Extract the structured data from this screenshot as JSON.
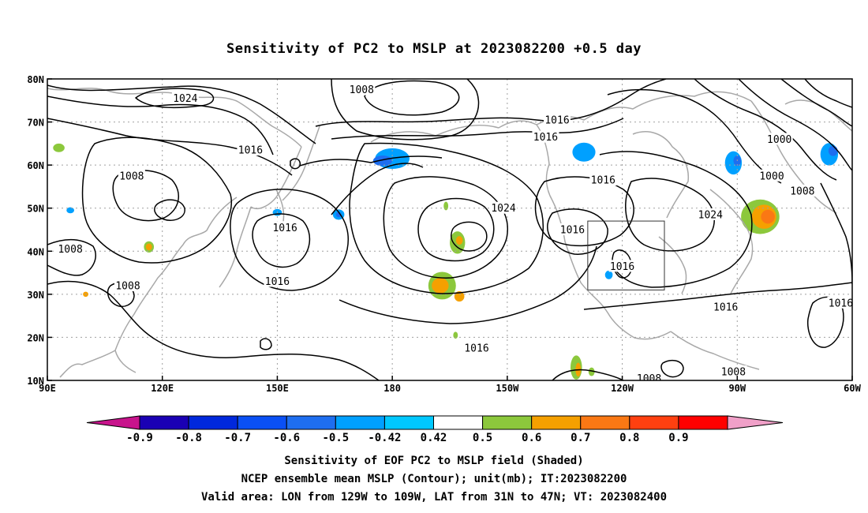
{
  "title": "Sensitivity of PC2 to MSLP at 2023082200 +0.5 day",
  "map": {
    "lon_ticks": [
      "90E",
      "120E",
      "150E",
      "180",
      "150W",
      "120W",
      "90W",
      "60W"
    ],
    "lat_ticks": [
      "80N",
      "70N",
      "60N",
      "50N",
      "40N",
      "30N",
      "20N",
      "10N"
    ],
    "lon_range": [
      90,
      300
    ],
    "lat_range": [
      10,
      80
    ],
    "grid": true,
    "valid_box": {
      "lon_w": -129,
      "lon_e": -109,
      "lat_s": 31,
      "lat_n": 47
    },
    "contour_labels": [
      {
        "text": "1024",
        "lon": 126,
        "lat": 75.5
      },
      {
        "text": "1008",
        "lon": 172,
        "lat": 77.5
      },
      {
        "text": "1016",
        "lon": 223,
        "lat": 70.5
      },
      {
        "text": "1016",
        "lon": 220,
        "lat": 66.5
      },
      {
        "text": "1016",
        "lon": 143,
        "lat": 63.5
      },
      {
        "text": "1008",
        "lon": 112,
        "lat": 57.5
      },
      {
        "text": "1000",
        "lon": 281,
        "lat": 66
      },
      {
        "text": "1000",
        "lon": 279,
        "lat": 57.5
      },
      {
        "text": "1016",
        "lon": 235,
        "lat": 56.5
      },
      {
        "text": "1008",
        "lon": 287,
        "lat": 54
      },
      {
        "text": "1024",
        "lon": 209,
        "lat": 50
      },
      {
        "text": "1024",
        "lon": 263,
        "lat": 48.5
      },
      {
        "text": "1016",
        "lon": 152,
        "lat": 45.5
      },
      {
        "text": "1016",
        "lon": 227,
        "lat": 45
      },
      {
        "text": "1008",
        "lon": 96,
        "lat": 40.5
      },
      {
        "text": "1016",
        "lon": 240,
        "lat": 36.5
      },
      {
        "text": "1016",
        "lon": 150,
        "lat": 33
      },
      {
        "text": "1008",
        "lon": 111,
        "lat": 32
      },
      {
        "text": "1016",
        "lon": 267,
        "lat": 27
      },
      {
        "text": "1016",
        "lon": 297,
        "lat": 28
      },
      {
        "text": "1016",
        "lon": 202,
        "lat": 17.5
      },
      {
        "text": "1008",
        "lon": 247,
        "lat": 10.5
      },
      {
        "text": "1008",
        "lon": 269,
        "lat": 12
      }
    ],
    "sensitivity_patches": [
      {
        "lon": 180,
        "lat": 61.5,
        "rx": 4.5,
        "ry": 2.4,
        "value": -0.5
      },
      {
        "lon": 177.5,
        "lat": 61,
        "rx": 2.5,
        "ry": 1.2,
        "value": -0.6
      },
      {
        "lon": 230,
        "lat": 63,
        "rx": 3,
        "ry": 2.2,
        "value": -0.5
      },
      {
        "lon": 294,
        "lat": 62.5,
        "rx": 2.3,
        "ry": 2.6,
        "value": -0.5
      },
      {
        "lon": 295,
        "lat": 63.3,
        "rx": 1.2,
        "ry": 1.2,
        "value": -0.6
      },
      {
        "lon": 269,
        "lat": 60.5,
        "rx": 2.2,
        "ry": 2.7,
        "value": -0.5
      },
      {
        "lon": 270,
        "lat": 61,
        "rx": 1,
        "ry": 1.2,
        "value": -0.6
      },
      {
        "lon": 150,
        "lat": 49,
        "rx": 1.2,
        "ry": 0.8,
        "value": -0.5
      },
      {
        "lon": 166,
        "lat": 48.5,
        "rx": 1.5,
        "ry": 1.2,
        "value": -0.5
      },
      {
        "lon": 166,
        "lat": 48.5,
        "rx": 0.7,
        "ry": 0.6,
        "value": -0.6
      },
      {
        "lon": 96,
        "lat": 49.5,
        "rx": 1,
        "ry": 0.7,
        "value": -0.5
      },
      {
        "lon": 236.5,
        "lat": 34.5,
        "rx": 1,
        "ry": 1,
        "value": -0.5
      },
      {
        "lon": 276,
        "lat": 48,
        "rx": 5,
        "ry": 4,
        "value": 0.5
      },
      {
        "lon": 277,
        "lat": 48,
        "rx": 3.2,
        "ry": 2.8,
        "value": 0.6
      },
      {
        "lon": 278,
        "lat": 48,
        "rx": 1.8,
        "ry": 1.6,
        "value": 0.7
      },
      {
        "lon": 193,
        "lat": 32,
        "rx": 3.6,
        "ry": 3.2,
        "value": 0.5
      },
      {
        "lon": 192.5,
        "lat": 32,
        "rx": 2.2,
        "ry": 1.8,
        "value": 0.6
      },
      {
        "lon": 197.5,
        "lat": 29.5,
        "rx": 1.3,
        "ry": 1.2,
        "value": 0.6
      },
      {
        "lon": 197,
        "lat": 42,
        "rx": 2,
        "ry": 2.6,
        "value": 0.5
      },
      {
        "lon": 197.5,
        "lat": 42.5,
        "rx": 0.9,
        "ry": 1,
        "value": 0.6
      },
      {
        "lon": 116.5,
        "lat": 41,
        "rx": 1.3,
        "ry": 1.3,
        "value": 0.5
      },
      {
        "lon": 116.5,
        "lat": 41,
        "rx": 0.8,
        "ry": 0.8,
        "value": 0.6
      },
      {
        "lon": 228,
        "lat": 13,
        "rx": 1.5,
        "ry": 2.8,
        "value": 0.5
      },
      {
        "lon": 228.5,
        "lat": 12.5,
        "rx": 0.7,
        "ry": 1.6,
        "value": 0.6
      },
      {
        "lon": 100,
        "lat": 30,
        "rx": 0.7,
        "ry": 0.6,
        "value": 0.6
      },
      {
        "lon": 93,
        "lat": 64,
        "rx": 1.5,
        "ry": 1,
        "value": 0.5
      },
      {
        "lon": 194,
        "lat": 50.5,
        "rx": 0.6,
        "ry": 1,
        "value": 0.5
      },
      {
        "lon": 196.5,
        "lat": 20.5,
        "rx": 0.6,
        "ry": 0.8,
        "value": 0.5
      },
      {
        "lon": 232,
        "lat": 12,
        "rx": 0.8,
        "ry": 1,
        "value": 0.5
      }
    ]
  },
  "colorbar": {
    "labels": [
      "-0.9",
      "-0.8",
      "-0.7",
      "-0.6",
      "-0.5",
      "-0.42",
      "0.42",
      "0.5",
      "0.6",
      "0.7",
      "0.8",
      "0.9"
    ],
    "colors": [
      "#1a00b4",
      "#0028dc",
      "#0a50f5",
      "#1e6ef0",
      "#00a0ff",
      "#00c8ff",
      "#ffffff",
      "#8cc83c",
      "#f5a000",
      "#fa7814",
      "#ff4010",
      "#ff0000"
    ],
    "under_color": "#c8148c",
    "over_color": "#f0a0c8"
  },
  "captions": [
    "Sensitivity of EOF PC2 to MSLP field (Shaded)",
    "NCEP ensemble mean MSLP (Contour); unit(mb); IT:2023082200",
    "Valid area: LON from 129W to 109W, LAT from 31N to 47N; VT: 2023082400"
  ]
}
